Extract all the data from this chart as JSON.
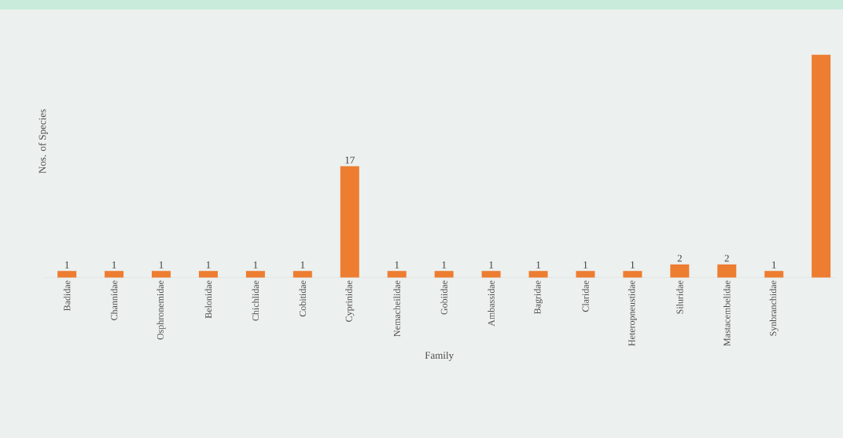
{
  "chart_data": {
    "type": "bar",
    "xlabel": "Family",
    "ylabel": "Nos. of Species",
    "categories": [
      "Badidae",
      "Channidae",
      "Osphronemidae",
      "Belonidae",
      "Chichlidae",
      "Cobitidae",
      "Cyprinidae",
      "Nemacheilidae",
      "Gobiidae",
      "Ambassidae",
      "Bagridae",
      "Claridae",
      "Heteropneustidae",
      "Siluridae",
      "Mastacembelidae",
      "Synbranchidae",
      null
    ],
    "values": [
      1,
      1,
      1,
      1,
      1,
      1,
      17,
      1,
      1,
      1,
      1,
      1,
      1,
      2,
      2,
      1,
      34
    ],
    "value_labels": [
      "1",
      "1",
      "1",
      "1",
      "1",
      "1",
      "17",
      "1",
      "1",
      "1",
      "1",
      "1",
      "1",
      "2",
      "2",
      "1",
      null
    ],
    "color": "#ed7d31"
  }
}
